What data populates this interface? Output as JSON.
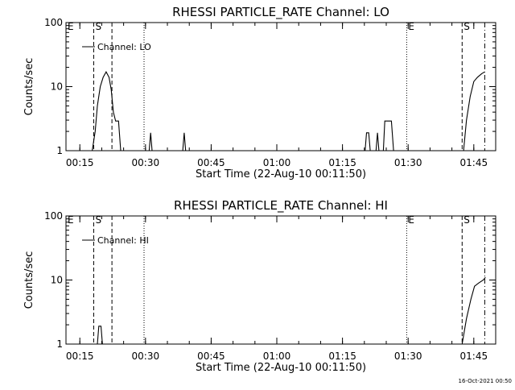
{
  "footer_timestamp": "16-Oct-2021 00:50",
  "chart_data": [
    {
      "type": "line",
      "title": "RHESSI PARTICLE_RATE Channel: LO",
      "xlabel": "Start Time (22-Aug-10 00:11:50)",
      "ylabel": "Counts/sec",
      "y_scale": "log",
      "ylim": [
        1,
        100
      ],
      "y_ticks": [
        1,
        10,
        100
      ],
      "y_tick_labels": [
        "1",
        "10",
        "100"
      ],
      "xlim": [
        "00:11:50",
        "01:50:00"
      ],
      "x_ticks": [
        "00:15",
        "00:30",
        "00:45",
        "01:00",
        "01:15",
        "01:30",
        "01:45"
      ],
      "x_tick_labels": [
        "00:15",
        "00:30",
        "00:45",
        "01:00",
        "01:15",
        "01:30",
        "01:45"
      ],
      "grid": false,
      "legend_placement": "top-left",
      "series": [
        {
          "name": "Channel: LO",
          "points": [
            [
              "00:17:50",
              1.0
            ],
            [
              "00:18:30",
              2.0
            ],
            [
              "00:19:00",
              5.0
            ],
            [
              "00:19:40",
              10.0
            ],
            [
              "00:20:20",
              14.0
            ],
            [
              "00:21:00",
              17.0
            ],
            [
              "00:21:40",
              14.0
            ],
            [
              "00:22:10",
              9.0
            ],
            [
              "00:22:40",
              4.0
            ],
            [
              "00:23:10",
              2.9
            ],
            [
              "00:23:50",
              2.9
            ],
            [
              "00:24:20",
              1.0
            ],
            [
              "00:30:50",
              1.0
            ],
            [
              "00:31:10",
              1.9
            ],
            [
              "00:31:30",
              1.0
            ],
            [
              "00:38:30",
              1.0
            ],
            [
              "00:38:50",
              1.9
            ],
            [
              "00:39:10",
              1.0
            ],
            [
              "01:20:10",
              1.0
            ],
            [
              "01:20:30",
              1.9
            ],
            [
              "01:21:00",
              1.9
            ],
            [
              "01:21:20",
              1.0
            ],
            [
              "01:22:40",
              1.0
            ],
            [
              "01:23:00",
              1.9
            ],
            [
              "01:23:20",
              1.0
            ],
            [
              "01:24:20",
              1.0
            ],
            [
              "01:24:40",
              2.9
            ],
            [
              "01:26:10",
              2.9
            ],
            [
              "01:26:40",
              1.0
            ],
            [
              "01:42:40",
              1.0
            ],
            [
              "01:43:20",
              3.0
            ],
            [
              "01:44:10",
              7.0
            ],
            [
              "01:45:00",
              12.0
            ],
            [
              "01:45:50",
              14.0
            ],
            [
              "01:46:50",
              16.0
            ],
            [
              "01:47:30",
              17.0
            ]
          ]
        }
      ],
      "markers": [
        {
          "label": "E",
          "time": "00:11:50",
          "style": "dotted"
        },
        {
          "label": "S",
          "time": "00:18:10",
          "style": "dashed"
        },
        {
          "label": "",
          "time": "00:22:20",
          "style": "dashed"
        },
        {
          "label": "",
          "time": "00:29:40",
          "style": "dotted"
        },
        {
          "label": "E",
          "time": "01:29:40",
          "style": "dotted"
        },
        {
          "label": "S",
          "time": "01:42:20",
          "style": "dashed"
        },
        {
          "label": "",
          "time": "01:47:30",
          "style": "dashdot"
        }
      ]
    },
    {
      "type": "line",
      "title": "RHESSI PARTICLE_RATE Channel: HI",
      "xlabel": "Start Time (22-Aug-10 00:11:50)",
      "ylabel": "Counts/sec",
      "y_scale": "log",
      "ylim": [
        1,
        100
      ],
      "y_ticks": [
        1,
        10,
        100
      ],
      "y_tick_labels": [
        "1",
        "10",
        "100"
      ],
      "xlim": [
        "00:11:50",
        "01:50:00"
      ],
      "x_ticks": [
        "00:15",
        "00:30",
        "00:45",
        "01:00",
        "01:15",
        "01:30",
        "01:45"
      ],
      "x_tick_labels": [
        "00:15",
        "00:30",
        "00:45",
        "01:00",
        "01:15",
        "01:30",
        "01:45"
      ],
      "grid": false,
      "legend_placement": "top-left",
      "series": [
        {
          "name": "Channel: HI",
          "points": [
            [
              "00:19:00",
              1.0
            ],
            [
              "00:19:20",
              1.9
            ],
            [
              "00:19:50",
              1.9
            ],
            [
              "00:20:10",
              1.0
            ],
            [
              "01:42:20",
              1.0
            ],
            [
              "01:43:20",
              2.5
            ],
            [
              "01:44:20",
              5.0
            ],
            [
              "01:45:10",
              8.0
            ],
            [
              "01:46:10",
              9.0
            ],
            [
              "01:47:10",
              10.0
            ],
            [
              "01:47:40",
              11.0
            ]
          ]
        }
      ],
      "markers": [
        {
          "label": "E",
          "time": "00:11:50",
          "style": "dotted"
        },
        {
          "label": "S",
          "time": "00:18:10",
          "style": "dashed"
        },
        {
          "label": "",
          "time": "00:22:20",
          "style": "dashed"
        },
        {
          "label": "",
          "time": "00:29:40",
          "style": "dotted"
        },
        {
          "label": "E",
          "time": "01:29:40",
          "style": "dotted"
        },
        {
          "label": "S",
          "time": "01:42:20",
          "style": "dashed"
        },
        {
          "label": "",
          "time": "01:47:30",
          "style": "dashdot"
        }
      ]
    }
  ]
}
